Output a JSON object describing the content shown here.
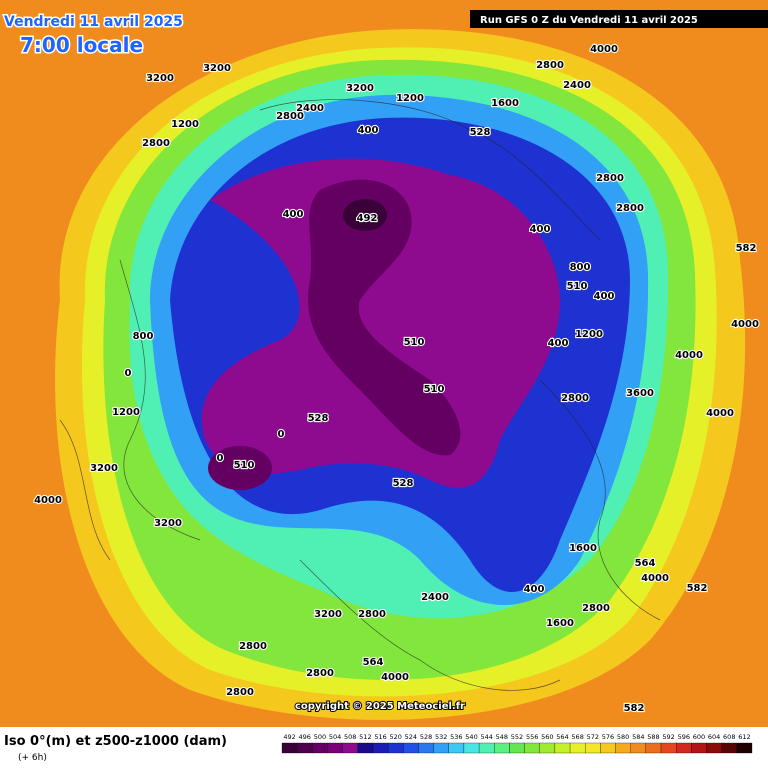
{
  "header": {
    "date": "Vendredi 11 avril 2025",
    "time": "7:00 locale",
    "run": "Run GFS 0 Z du Vendredi 11 avril 2025"
  },
  "copyright": "copyright © 2025 Meteociel.fr",
  "footer": {
    "title": "Iso 0°(m) et z500-z1000 (dam)",
    "step": "(+ 6h)"
  },
  "colorbar": {
    "values": [
      492,
      496,
      500,
      504,
      508,
      512,
      516,
      520,
      524,
      528,
      532,
      536,
      540,
      544,
      548,
      552,
      556,
      560,
      564,
      568,
      572,
      576,
      580,
      584,
      588,
      592,
      596,
      600,
      604,
      608,
      612
    ],
    "colors": [
      "#3a0038",
      "#4e004c",
      "#640062",
      "#7a0078",
      "#8e0a8e",
      "#1a0a8c",
      "#1c1cb4",
      "#1e32d2",
      "#2050e6",
      "#2a78f0",
      "#32a0f5",
      "#3cc8f5",
      "#46e6e6",
      "#50f0b4",
      "#5af082",
      "#64e650",
      "#82e63c",
      "#a0eb32",
      "#c8f028",
      "#e6f028",
      "#f5e628",
      "#f5c81e",
      "#f5aa1e",
      "#f08c1e",
      "#eb6e1e",
      "#e6461e",
      "#d2281e",
      "#b41414",
      "#8c0a0a",
      "#5a0505",
      "#1e0000"
    ]
  },
  "contour_labels": [
    3200,
    3200,
    3200,
    1200,
    2800,
    2800,
    2400,
    400,
    1200,
    1600,
    2800,
    4000,
    2400,
    2800,
    2800,
    492,
    510,
    510,
    510,
    528,
    528,
    528,
    582,
    4000,
    4000,
    4000,
    1200,
    3200,
    4000,
    3200,
    3200,
    2800,
    2800,
    2800,
    2800,
    4000,
    1600,
    2800,
    1600,
    4000,
    400,
    564,
    582,
    582,
    564,
    2400,
    400,
    400,
    800,
    400,
    510,
    400,
    1200,
    2800,
    3600,
    0,
    0,
    0,
    800
  ]
}
